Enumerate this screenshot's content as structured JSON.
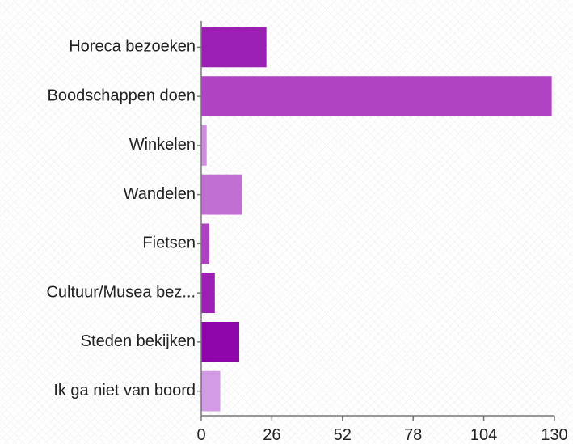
{
  "chart_data": {
    "type": "bar",
    "orientation": "horizontal",
    "categories": [
      "Horeca bezoeken",
      "Boodschappen doen",
      "Winkelen",
      "Wandelen",
      "Fietsen",
      "Cultuur/Musea bez...",
      "Steden bekijken",
      "Ik ga niet van boord"
    ],
    "values": [
      24,
      129,
      2,
      15,
      3,
      5,
      14,
      7
    ],
    "colors": [
      "#9c1fb4",
      "#b043c3",
      "#cf8ee0",
      "#c26fd4",
      "#ad41c1",
      "#9b1fb3",
      "#8e05aa",
      "#d39be3"
    ],
    "xlim": [
      0,
      130
    ],
    "xticks": [
      0,
      26,
      52,
      78,
      104,
      130
    ],
    "title": "",
    "xlabel": "",
    "ylabel": ""
  }
}
